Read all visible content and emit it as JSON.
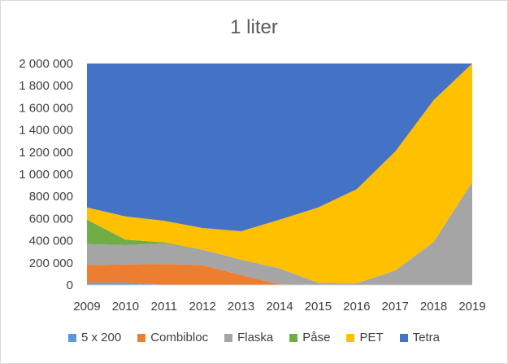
{
  "chart_data": {
    "type": "area",
    "stacked": true,
    "title": "1 liter",
    "xlabel": "",
    "ylabel": "",
    "x": [
      "2009",
      "2010",
      "2011",
      "2012",
      "2013",
      "2014",
      "2015",
      "2016",
      "2017",
      "2018",
      "2019"
    ],
    "ylim": [
      0,
      2000000
    ],
    "yticks": [
      0,
      200000,
      400000,
      600000,
      800000,
      1000000,
      1200000,
      1400000,
      1600000,
      1800000,
      2000000
    ],
    "ytick_labels": [
      "0",
      "200 000",
      "400 000",
      "600 000",
      "800 000",
      "1 000 000",
      "1 200 000",
      "1 400 000",
      "1 600 000",
      "1 800 000",
      "2 000 000"
    ],
    "grid": false,
    "legend_position": "bottom",
    "series": [
      {
        "name": "5 x 200",
        "color": "#5b9bd5",
        "values": [
          20000,
          20000,
          0,
          0,
          0,
          0,
          0,
          0,
          0,
          0,
          0
        ]
      },
      {
        "name": "Combibloc",
        "color": "#ed7d31",
        "values": [
          160000,
          165000,
          190000,
          180000,
          90000,
          5000,
          0,
          0,
          0,
          0,
          0
        ]
      },
      {
        "name": "Flaska",
        "color": "#a5a5a5",
        "values": [
          190000,
          175000,
          185000,
          140000,
          140000,
          145000,
          20000,
          15000,
          130000,
          390000,
          930000
        ]
      },
      {
        "name": "Påse",
        "color": "#70ad47",
        "values": [
          220000,
          50000,
          10000,
          0,
          0,
          0,
          0,
          0,
          0,
          0,
          0
        ]
      },
      {
        "name": "PET",
        "color": "#ffc000",
        "values": [
          110000,
          210000,
          195000,
          195000,
          255000,
          440000,
          680000,
          850000,
          1075000,
          1280000,
          1070000
        ]
      },
      {
        "name": "Tetra",
        "color": "#4472c4",
        "values": [
          1300000,
          1380000,
          1420000,
          1485000,
          1515000,
          1410000,
          1300000,
          1135000,
          795000,
          330000,
          0
        ]
      }
    ]
  }
}
